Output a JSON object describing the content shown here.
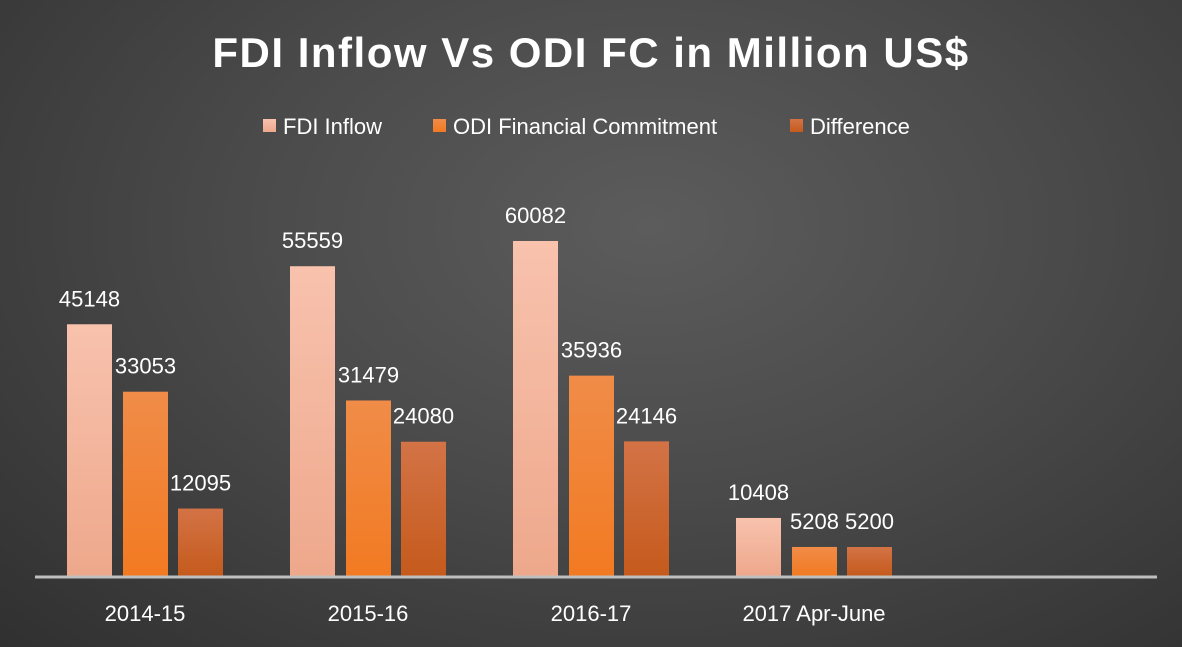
{
  "chart_data": {
    "type": "bar",
    "title": "FDI Inflow Vs ODI FC in Million US$",
    "categories": [
      "2014-15",
      "2015-16",
      "2016-17",
      "2017 Apr-June"
    ],
    "series": [
      {
        "name": "FDI Inflow",
        "values": [
          45148,
          55559,
          60082,
          10408
        ],
        "labels": [
          "45148",
          "55559",
          "60082",
          "10408"
        ]
      },
      {
        "name": "ODI Financial Commitment",
        "values": [
          33053,
          31479,
          35936,
          5208
        ],
        "labels": [
          "33053",
          "31479",
          "35936",
          "5208"
        ]
      },
      {
        "name": "Difference",
        "values": [
          12095,
          24080,
          24146,
          5200
        ],
        "labels": [
          "12095",
          "24080",
          "24146",
          "5200"
        ]
      }
    ],
    "xlabel": "",
    "ylabel": "",
    "ylim": [
      0,
      60082
    ],
    "grid": false,
    "legend_position": "top",
    "colors": [
      "#f5bba6",
      "#f07b2c",
      "#cf6428"
    ]
  }
}
